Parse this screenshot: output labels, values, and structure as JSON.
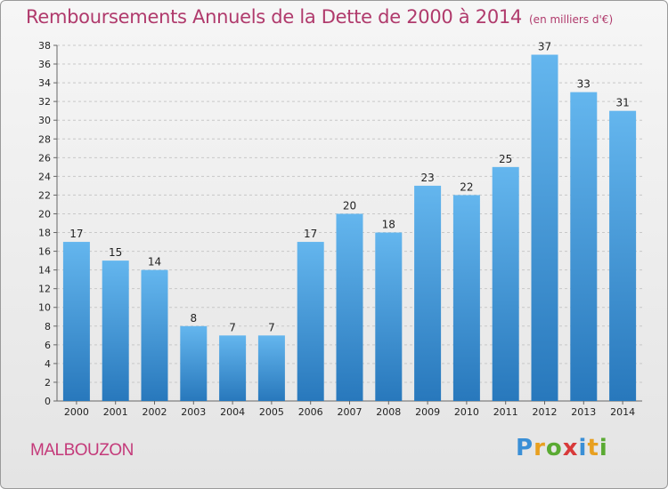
{
  "title": "Remboursements Annuels de la Dette de 2000 à 2014",
  "unit_note": "(en milliers d'€)",
  "commune": "MALBOUZON",
  "logo": {
    "text": "Proxiti",
    "letters": [
      {
        "ch": "P",
        "color": "#3a8fd6"
      },
      {
        "ch": "r",
        "color": "#e8a020"
      },
      {
        "ch": "o",
        "color": "#5aaa32"
      },
      {
        "ch": "x",
        "color": "#d83a3a"
      },
      {
        "ch": "i",
        "color": "#3a8fd6"
      },
      {
        "ch": "t",
        "color": "#e8a020"
      },
      {
        "ch": "i",
        "color": "#5aaa32"
      }
    ]
  },
  "colors": {
    "bar_light": "#62b4ec",
    "bar_dark": "#2a7cc0",
    "title": "#b03a6c",
    "commune": "#c43a7a"
  },
  "chart_data": {
    "type": "bar",
    "title": "Remboursements Annuels de la Dette de 2000 à 2014",
    "subtitle": "(en milliers d'€)",
    "categories": [
      "2000",
      "2001",
      "2002",
      "2003",
      "2004",
      "2005",
      "2006",
      "2007",
      "2008",
      "2009",
      "2010",
      "2011",
      "2012",
      "2013",
      "2014"
    ],
    "values": [
      17,
      15,
      14,
      8,
      7,
      7,
      17,
      20,
      18,
      23,
      22,
      25,
      37,
      33,
      31
    ],
    "ylim": [
      0,
      38
    ],
    "yticks": [
      0,
      2,
      4,
      6,
      8,
      10,
      12,
      14,
      16,
      18,
      20,
      22,
      24,
      26,
      28,
      30,
      32,
      34,
      36,
      38
    ],
    "grid": true
  }
}
